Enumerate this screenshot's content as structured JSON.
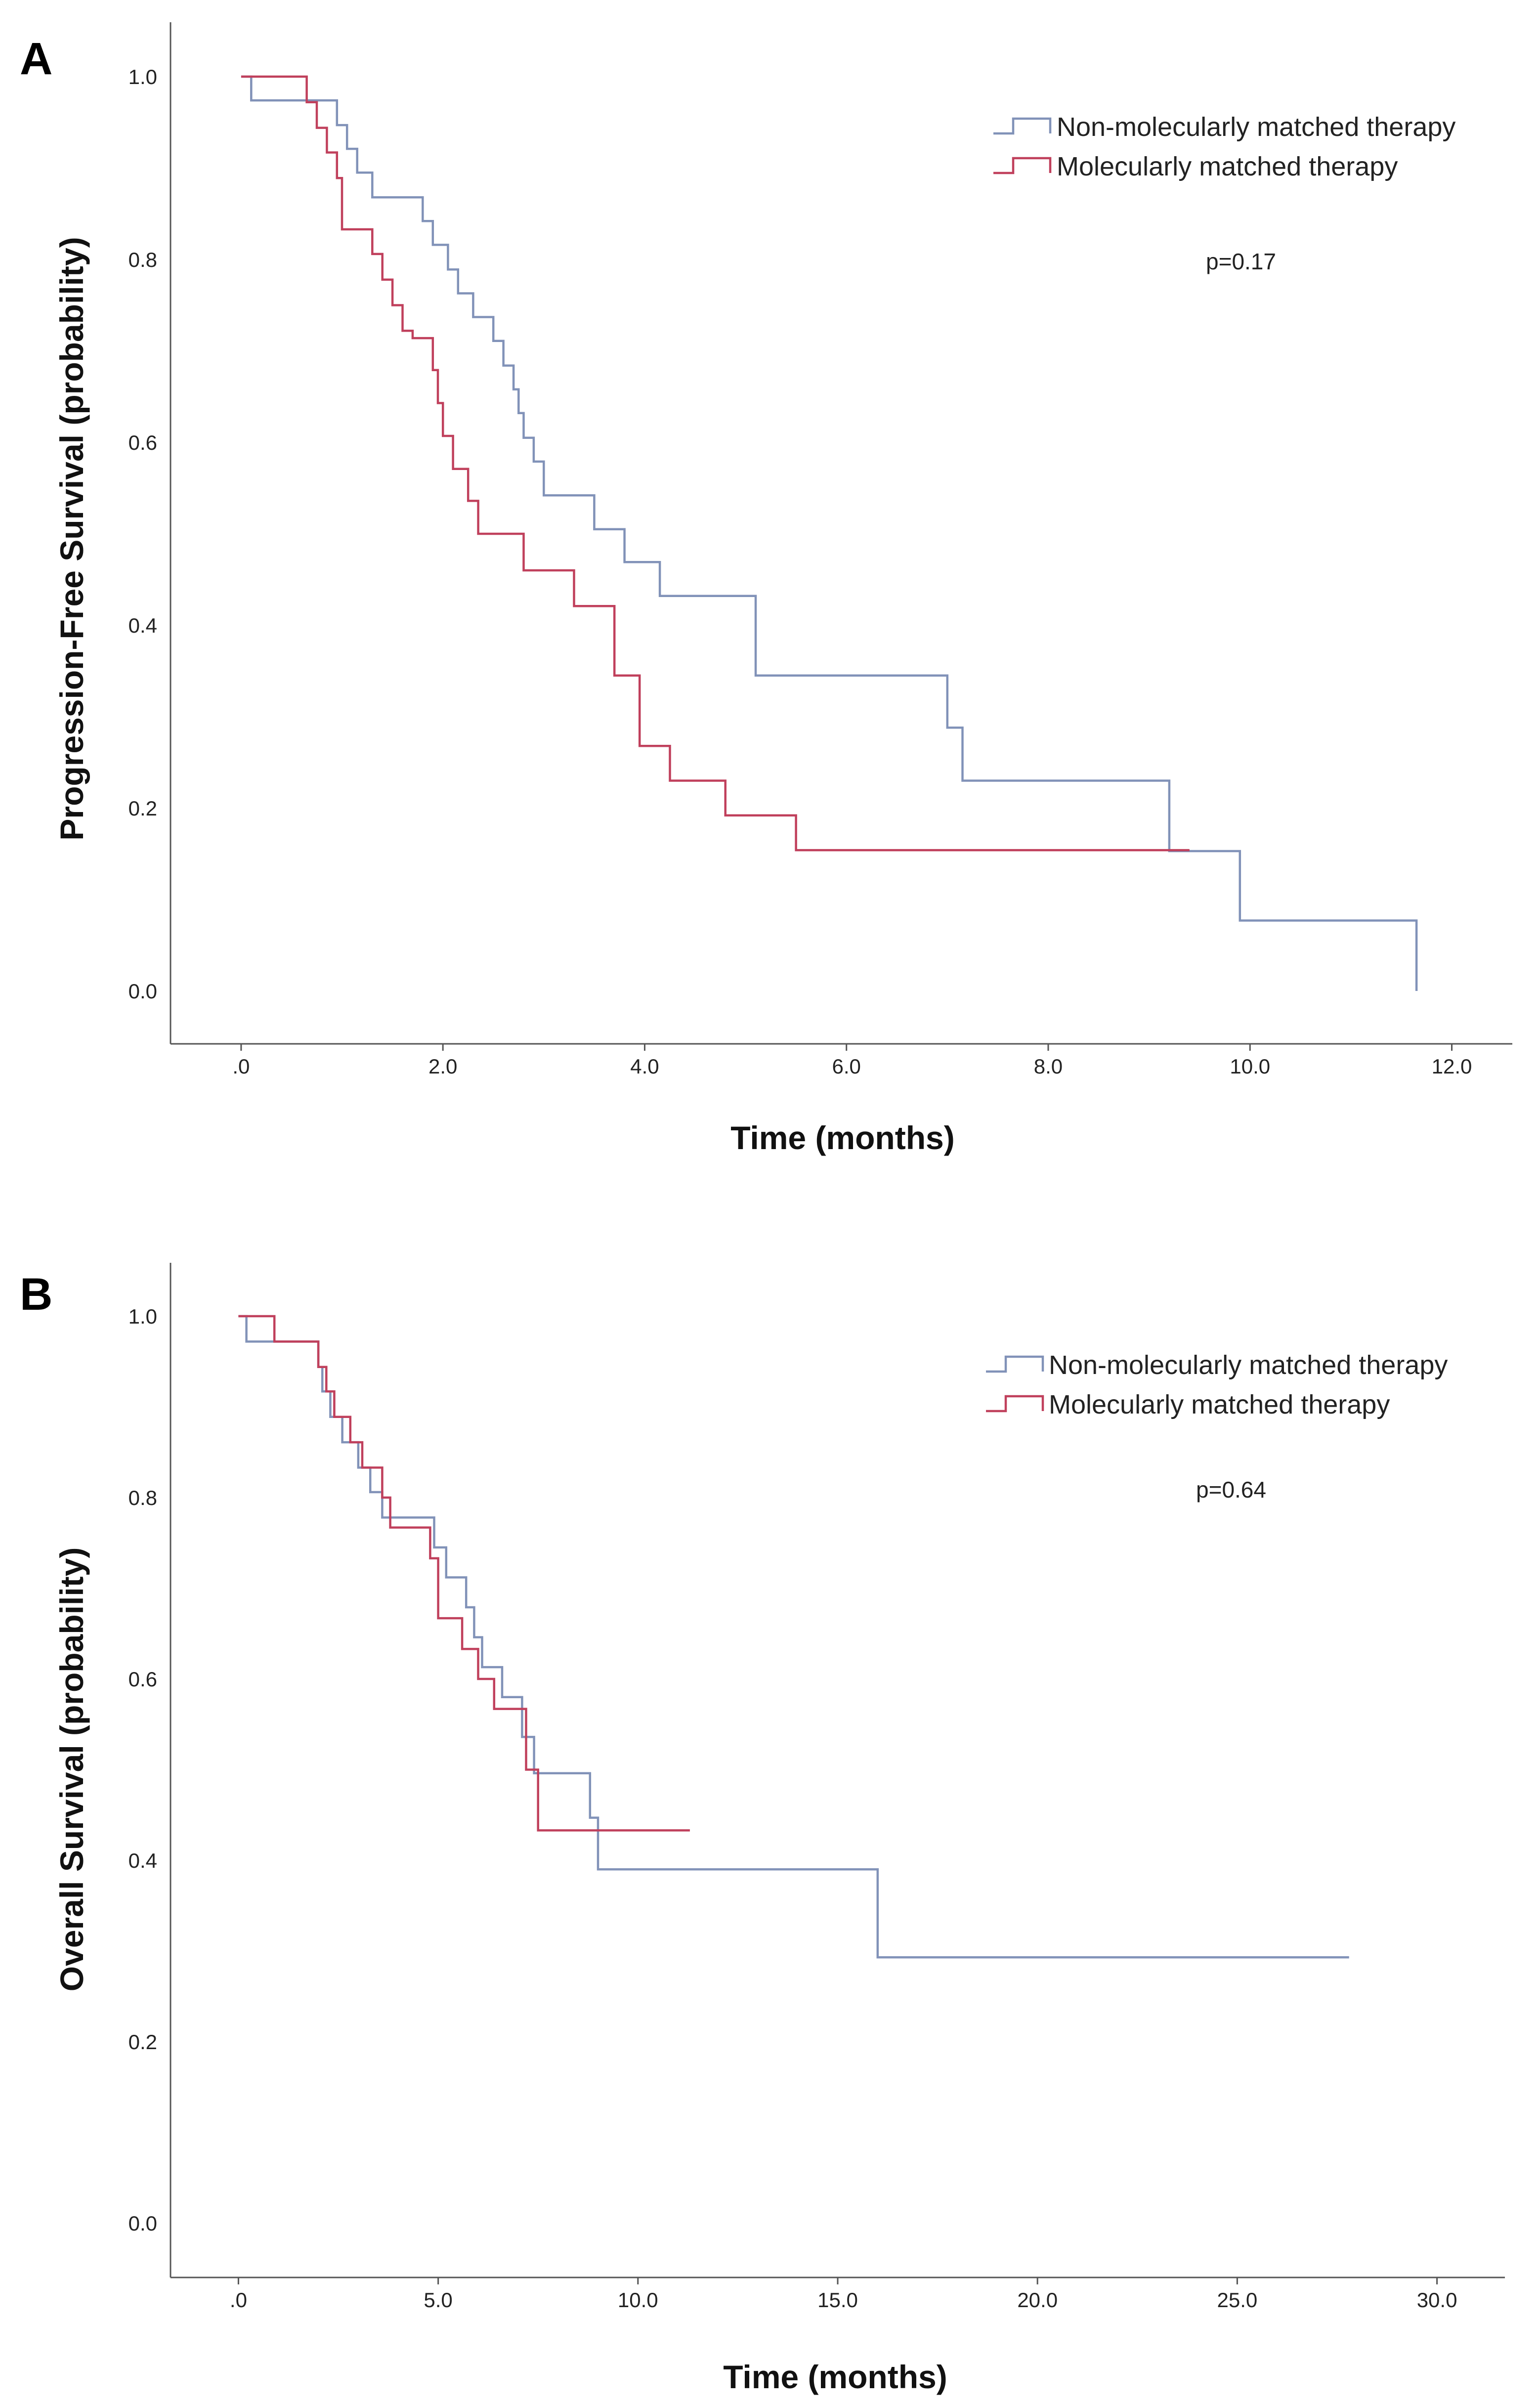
{
  "chart_data": [
    {
      "type": "line",
      "panel": "A",
      "title": "",
      "xlabel": "Time (months)",
      "ylabel": "Progression-Free Survival (probability)",
      "xlim": [
        -0.7,
        12.6
      ],
      "ylim": [
        -0.05,
        1.05
      ],
      "x_ticks": [
        0,
        2,
        4,
        6,
        8,
        10,
        12
      ],
      "x_tick_labels": [
        ".0",
        "2.0",
        "4.0",
        "6.0",
        "8.0",
        "10.0",
        "12.0"
      ],
      "y_ticks": [
        0,
        0.2,
        0.4,
        0.6,
        0.8,
        1.0
      ],
      "y_tick_labels": [
        "0.0",
        "0.2",
        "0.4",
        "0.6",
        "0.8",
        "1.0"
      ],
      "legend_position": "top-right",
      "annotation": "p=0.17",
      "series": [
        {
          "name": "Non-molecularly matched therapy",
          "color": "#8192b8",
          "x": [
            0,
            0.1,
            0.85,
            0.95,
            1.05,
            1.15,
            1.3,
            1.7,
            1.8,
            1.9,
            2.05,
            2.15,
            2.3,
            2.5,
            2.6,
            2.7,
            2.75,
            2.8,
            2.9,
            3.0,
            3.5,
            3.8,
            4.15,
            5.1,
            7.0,
            7.15,
            9.2,
            9.9,
            11.65
          ],
          "y": [
            1.0,
            0.974,
            0.974,
            0.947,
            0.921,
            0.895,
            0.868,
            0.868,
            0.842,
            0.816,
            0.789,
            0.763,
            0.737,
            0.711,
            0.684,
            0.658,
            0.632,
            0.605,
            0.579,
            0.542,
            0.505,
            0.469,
            0.432,
            0.345,
            0.288,
            0.23,
            0.153,
            0.077,
            0.0
          ]
        },
        {
          "name": "Molecularly matched therapy",
          "color": "#c0405c",
          "x": [
            0,
            0.65,
            0.75,
            0.85,
            0.95,
            1.0,
            1.3,
            1.4,
            1.5,
            1.6,
            1.7,
            1.9,
            1.95,
            2.0,
            2.1,
            2.25,
            2.35,
            2.5,
            2.7,
            2.8,
            2.9,
            3.3,
            3.7,
            3.95,
            4.25,
            4.8,
            5.5,
            9.4
          ],
          "y": [
            1.0,
            0.972,
            0.944,
            0.917,
            0.889,
            0.833,
            0.806,
            0.778,
            0.75,
            0.722,
            0.714,
            0.679,
            0.643,
            0.607,
            0.571,
            0.536,
            0.5,
            0.5,
            0.5,
            0.46,
            0.46,
            0.421,
            0.345,
            0.268,
            0.23,
            0.192,
            0.154,
            0.154
          ]
        }
      ]
    },
    {
      "type": "line",
      "panel": "B",
      "title": "",
      "xlabel": "Time (months)",
      "ylabel": "Overall Survival (probability)",
      "xlim": [
        -1.7,
        31.7
      ],
      "ylim": [
        -0.05,
        1.05
      ],
      "x_ticks": [
        0,
        5,
        10,
        15,
        20,
        25,
        30
      ],
      "x_tick_labels": [
        ".0",
        "5.0",
        "10.0",
        "15.0",
        "20.0",
        "25.0",
        "30.0"
      ],
      "y_ticks": [
        0,
        0.2,
        0.4,
        0.6,
        0.8,
        1.0
      ],
      "y_tick_labels": [
        "0.0",
        "0.2",
        "0.4",
        "0.6",
        "0.8",
        "1.0"
      ],
      "legend_position": "top-right",
      "annotation": "p=0.64",
      "series": [
        {
          "name": "Non-molecularly matched therapy",
          "color": "#8192b8",
          "x": [
            0,
            0.2,
            2.0,
            2.1,
            2.3,
            2.6,
            3.0,
            3.3,
            3.6,
            4.0,
            4.9,
            5.2,
            5.7,
            5.9,
            6.1,
            6.6,
            7.1,
            7.4,
            8.8,
            9.0,
            16.0,
            27.8
          ],
          "y": [
            1.0,
            0.972,
            0.944,
            0.917,
            0.889,
            0.861,
            0.833,
            0.806,
            0.778,
            0.778,
            0.745,
            0.712,
            0.679,
            0.646,
            0.613,
            0.58,
            0.536,
            0.496,
            0.447,
            0.39,
            0.293,
            0.293
          ],
          "end_x": 27.8
        },
        {
          "name": "Molecularly matched therapy",
          "color": "#c0405c",
          "x": [
            0,
            0.9,
            2.0,
            2.2,
            2.4,
            2.8,
            3.1,
            3.6,
            3.8,
            4.8,
            5.0,
            5.6,
            6.0,
            6.4,
            7.2,
            7.5,
            11.3
          ],
          "y": [
            1.0,
            0.972,
            0.944,
            0.917,
            0.889,
            0.861,
            0.833,
            0.8,
            0.767,
            0.733,
            0.667,
            0.633,
            0.6,
            0.567,
            0.5,
            0.433,
            0.433
          ]
        }
      ]
    }
  ],
  "panels": {
    "a": {
      "letter": "A"
    },
    "b": {
      "letter": "B"
    }
  }
}
